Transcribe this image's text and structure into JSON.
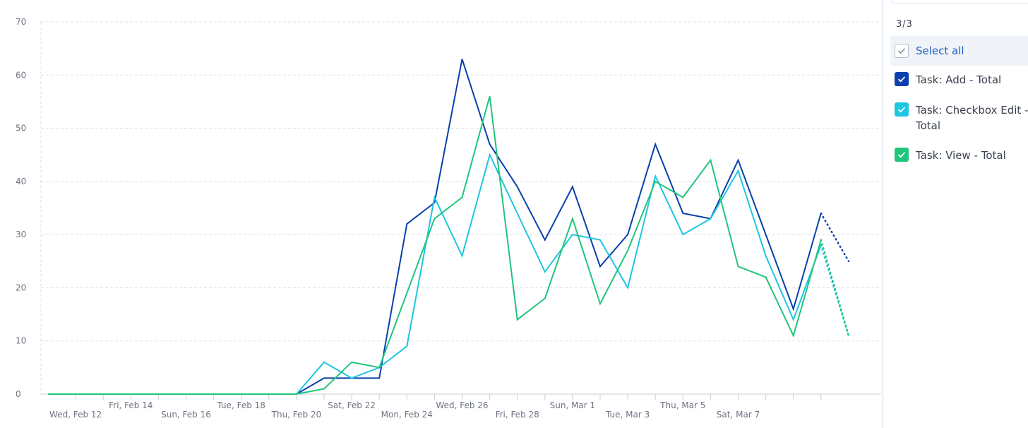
{
  "chart_data": {
    "type": "line",
    "title": "",
    "xlabel": "",
    "ylabel": "",
    "ylim": [
      0,
      70
    ],
    "yticks": [
      0,
      10,
      20,
      30,
      40,
      50,
      60,
      70
    ],
    "grid": true,
    "legend_placement": "right",
    "x": [
      "Feb 11",
      "Feb 12",
      "Feb 13",
      "Feb 14",
      "Feb 15",
      "Feb 16",
      "Feb 17",
      "Feb 18",
      "Feb 19",
      "Feb 20",
      "Feb 21",
      "Feb 22",
      "Feb 23",
      "Feb 24",
      "Feb 25",
      "Feb 26",
      "Feb 27",
      "Feb 28",
      "Feb 29",
      "Mar 1",
      "Mar 2",
      "Mar 3",
      "Mar 4",
      "Mar 5",
      "Mar 6",
      "Mar 7",
      "Mar 8",
      "Mar 9",
      "Mar 10"
    ],
    "xtick_labels": [
      {
        "index": 1,
        "label": "Wed, Feb 12",
        "row": 2
      },
      {
        "index": 3,
        "label": "Fri, Feb 14",
        "row": 1
      },
      {
        "index": 5,
        "label": "Sun, Feb 16",
        "row": 2
      },
      {
        "index": 7,
        "label": "Tue, Feb 18",
        "row": 1
      },
      {
        "index": 9,
        "label": "Thu, Feb 20",
        "row": 2
      },
      {
        "index": 11,
        "label": "Sat, Feb 22",
        "row": 1
      },
      {
        "index": 13,
        "label": "Mon, Feb 24",
        "row": 2
      },
      {
        "index": 15,
        "label": "Wed, Feb 26",
        "row": 1
      },
      {
        "index": 17,
        "label": "Fri, Feb 28",
        "row": 2
      },
      {
        "index": 19,
        "label": "Sun, Mar 1",
        "row": 1
      },
      {
        "index": 21,
        "label": "Tue, Mar 3",
        "row": 2
      },
      {
        "index": 23,
        "label": "Thu, Mar 5",
        "row": 1
      },
      {
        "index": 25,
        "label": "Sat, Mar 7",
        "row": 2
      }
    ],
    "series": [
      {
        "name": "Task: Add - Total",
        "color": "#0a3fad",
        "values": [
          0,
          0,
          0,
          0,
          0,
          0,
          0,
          0,
          0,
          0,
          3,
          3,
          3,
          32,
          36,
          63,
          47,
          39,
          29,
          39,
          24,
          30,
          47,
          34,
          33,
          44,
          30,
          16,
          34
        ],
        "projected": [
          34,
          25
        ]
      },
      {
        "name": "Task: Checkbox Edit - Total",
        "color": "#1ec6e0",
        "values": [
          0,
          0,
          0,
          0,
          0,
          0,
          0,
          0,
          0,
          0,
          6,
          3,
          5,
          9,
          37,
          26,
          45,
          34,
          23,
          30,
          29,
          20,
          41,
          30,
          33,
          42,
          26,
          14,
          28
        ],
        "projected": [
          28,
          11
        ]
      },
      {
        "name": "Task: View - Total",
        "color": "#20c57c",
        "values": [
          0,
          0,
          0,
          0,
          0,
          0,
          0,
          0,
          0,
          0,
          1,
          6,
          5,
          19,
          33,
          37,
          56,
          14,
          18,
          33,
          17,
          27,
          40,
          37,
          44,
          24,
          22,
          11,
          29
        ],
        "projected": [
          29,
          11
        ]
      }
    ]
  },
  "legend": {
    "count_label": "3/3",
    "select_all_label": "Select all",
    "items": [
      {
        "label": "Task: Add - Total",
        "color": "#0a3fad",
        "checked": true
      },
      {
        "label": "Task: Checkbox Edit - Total",
        "color": "#1ec6e0",
        "checked": true
      },
      {
        "label": "Task: View - Total",
        "color": "#20c57c",
        "checked": true
      }
    ]
  }
}
